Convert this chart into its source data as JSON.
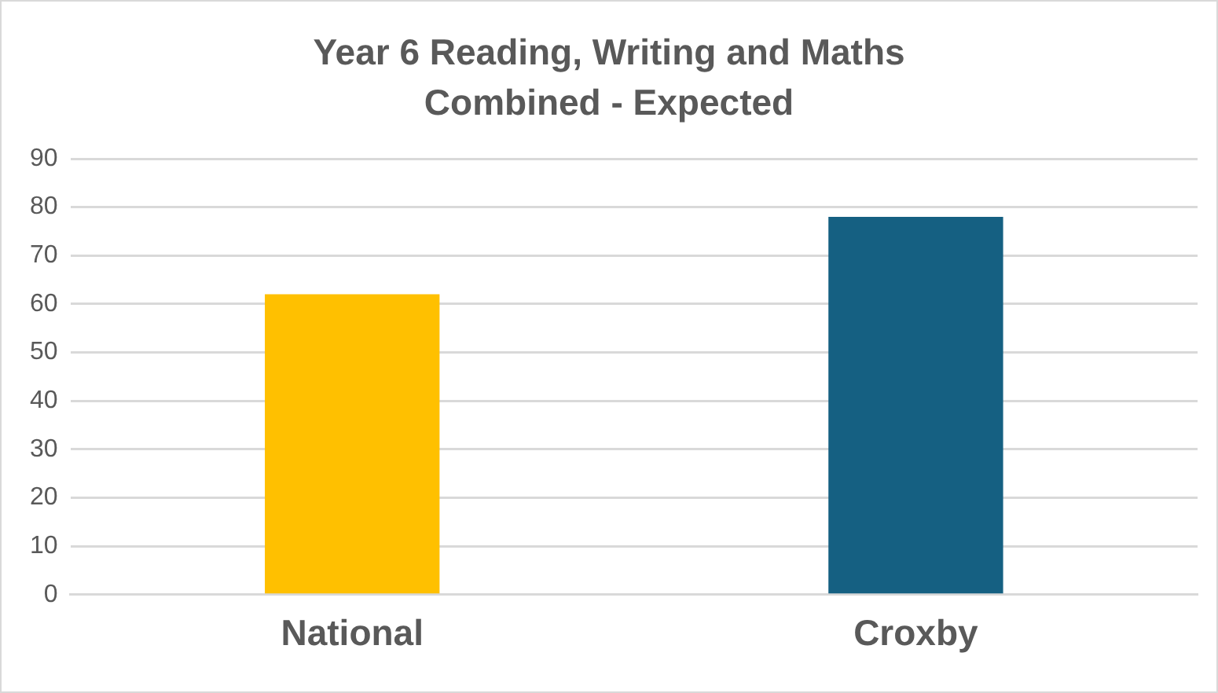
{
  "chart_data": {
    "type": "bar",
    "title": "Year 6 Reading, Writing and Maths Combined - Expected",
    "categories": [
      "National",
      "Croxby"
    ],
    "values": [
      62,
      78
    ],
    "colors": [
      "#ffc000",
      "#156082"
    ],
    "ylim": [
      0,
      90
    ],
    "yticks": [
      0,
      10,
      20,
      30,
      40,
      50,
      60,
      70,
      80,
      90
    ],
    "grid": "y"
  }
}
